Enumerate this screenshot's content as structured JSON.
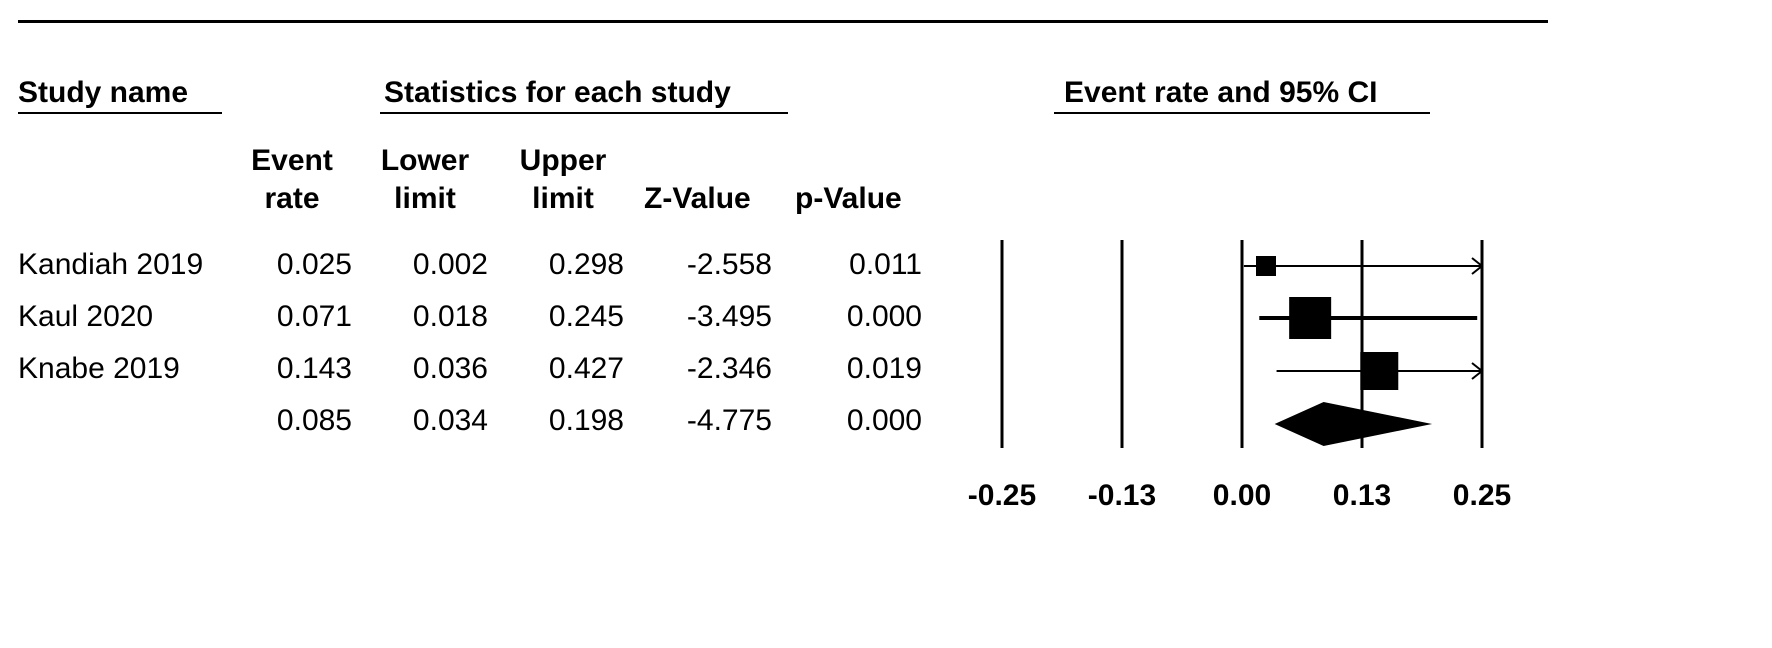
{
  "headers": {
    "study_name": "Study name",
    "statistics": "Statistics for each study",
    "plot": "Event rate and 95% CI"
  },
  "columns": {
    "event_rate": [
      "Event",
      "rate"
    ],
    "lower_limit": [
      "Lower",
      "limit"
    ],
    "upper_limit": [
      "Upper",
      "limit"
    ],
    "z_value": "Z-Value",
    "p_value": "p-Value"
  },
  "rows": [
    {
      "study": "Kandiah 2019",
      "event_rate": "0.025",
      "lower": "0.002",
      "upper": "0.298",
      "z": "-2.558",
      "p": "0.011"
    },
    {
      "study": "Kaul 2020",
      "event_rate": "0.071",
      "lower": "0.018",
      "upper": "0.245",
      "z": "-3.495",
      "p": "0.000"
    },
    {
      "study": "Knabe 2019",
      "event_rate": "0.143",
      "lower": "0.036",
      "upper": "0.427",
      "z": "-2.346",
      "p": "0.019"
    },
    {
      "study": "",
      "event_rate": "0.085",
      "lower": "0.034",
      "upper": "0.198",
      "z": "-4.775",
      "p": "0.000"
    }
  ],
  "chart_data": {
    "type": "forest",
    "title": "Event rate and 95% CI",
    "xlim": [
      -0.25,
      0.25
    ],
    "ticks": [
      "-0.25",
      "-0.13",
      "0.00",
      "0.13",
      "0.25"
    ],
    "tick_values": [
      -0.25,
      -0.125,
      0,
      0.125,
      0.25
    ],
    "studies": [
      {
        "name": "Kandiah 2019",
        "estimate": 0.025,
        "lower": 0.002,
        "upper": 0.298,
        "weight": 1
      },
      {
        "name": "Kaul 2020",
        "estimate": 0.071,
        "lower": 0.018,
        "upper": 0.245,
        "weight": 3
      },
      {
        "name": "Knabe 2019",
        "estimate": 0.143,
        "lower": 0.036,
        "upper": 0.427,
        "weight": 2
      }
    ],
    "summary": {
      "estimate": 0.085,
      "lower": 0.034,
      "upper": 0.198
    }
  }
}
